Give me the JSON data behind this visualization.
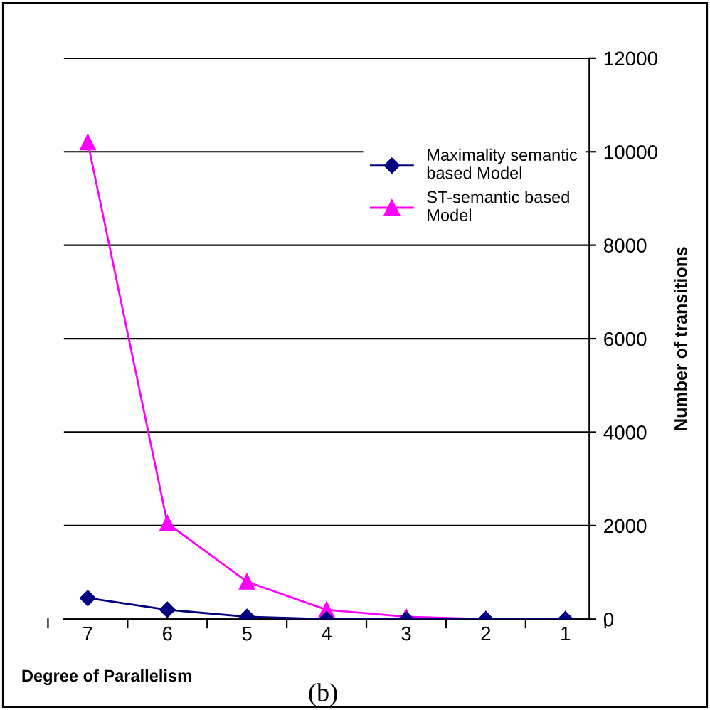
{
  "chart_data": {
    "type": "line",
    "categories": [
      "7",
      "6",
      "5",
      "4",
      "3",
      "2",
      "1"
    ],
    "series": [
      {
        "name": "Maximality semantic\nbased Model",
        "color": "#000080",
        "marker": "diamond",
        "values": [
          450,
          200,
          50,
          0,
          0,
          0,
          0
        ]
      },
      {
        "name": "ST-semantic based\nModel",
        "color": "#ff00ff",
        "marker": "triangle",
        "values": [
          10200,
          2050,
          800,
          200,
          50,
          0,
          0
        ]
      }
    ],
    "ylim": [
      0,
      12000
    ],
    "yticks": [
      0,
      2000,
      4000,
      6000,
      8000,
      10000,
      12000
    ],
    "ylabel": "Number of transitions",
    "xlabel": "Degree of Parallelism",
    "annotations": [
      "(b)"
    ],
    "grid": "y",
    "legend": "top right",
    "line_style": "solid"
  }
}
